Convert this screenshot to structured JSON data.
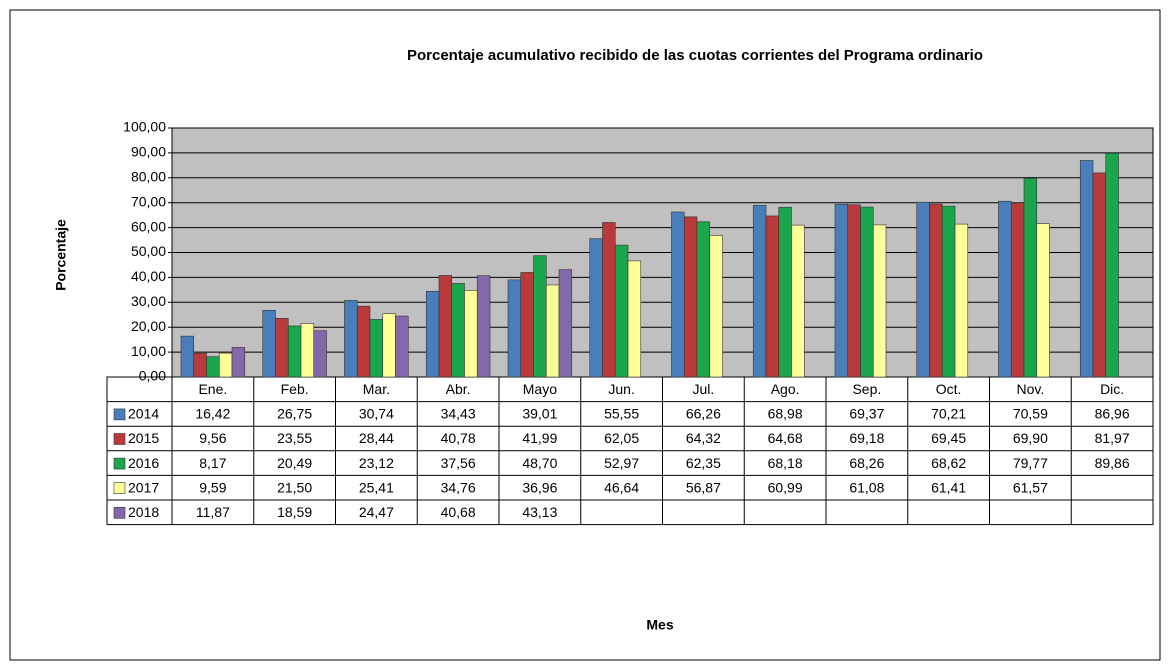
{
  "chart_data": {
    "type": "bar",
    "title": "Porcentaje acumulativo  recibido de las cuotas corrientes del Programa ordinario",
    "y_label": "Porcentaje",
    "x_label": "Mes",
    "categories": [
      "Ene.",
      "Feb.",
      "Mar.",
      "Abr.",
      "Mayo",
      "Jun.",
      "Jul.",
      "Ago.",
      "Sep.",
      "Oct.",
      "Nov.",
      "Dic."
    ],
    "series": [
      {
        "name": "2014",
        "color": "#4a7ebb",
        "values": [
          16.42,
          26.75,
          30.74,
          34.43,
          39.01,
          55.55,
          66.26,
          68.98,
          69.37,
          70.21,
          70.59,
          86.96
        ],
        "value_labels": [
          "16,42",
          "26,75",
          "30,74",
          "34,43",
          "39,01",
          "55,55",
          "66,26",
          "68,98",
          "69,37",
          "70,21",
          "70,59",
          "86,96"
        ]
      },
      {
        "name": "2015",
        "color": "#b83a3a",
        "values": [
          9.56,
          23.55,
          28.44,
          40.78,
          41.99,
          62.05,
          64.32,
          64.68,
          69.18,
          69.45,
          69.9,
          81.97
        ],
        "value_labels": [
          "9,56",
          "23,55",
          "28,44",
          "40,78",
          "41,99",
          "62,05",
          "64,32",
          "64,68",
          "69,18",
          "69,45",
          "69,90",
          "81,97"
        ]
      },
      {
        "name": "2016",
        "color": "#1aa64a",
        "values": [
          8.17,
          20.49,
          23.12,
          37.56,
          48.7,
          52.97,
          62.35,
          68.18,
          68.26,
          68.62,
          79.77,
          89.86
        ],
        "value_labels": [
          "8,17",
          "20,49",
          "23,12",
          "37,56",
          "48,70",
          "52,97",
          "62,35",
          "68,18",
          "68,26",
          "68,62",
          "79,77",
          "89,86"
        ]
      },
      {
        "name": "2017",
        "color": "#ffff99",
        "values": [
          9.59,
          21.5,
          25.41,
          34.76,
          36.96,
          46.64,
          56.87,
          60.99,
          61.08,
          61.41,
          61.57,
          null
        ],
        "value_labels": [
          "9,59",
          "21,50",
          "25,41",
          "34,76",
          "36,96",
          "46,64",
          "56,87",
          "60,99",
          "61,08",
          "61,41",
          "61,57",
          null
        ]
      },
      {
        "name": "2018",
        "color": "#8468ac",
        "values": [
          11.87,
          18.59,
          24.47,
          40.68,
          43.13,
          null,
          null,
          null,
          null,
          null,
          null,
          null
        ],
        "value_labels": [
          "11,87",
          "18,59",
          "24,47",
          "40,68",
          "43,13",
          null,
          null,
          null,
          null,
          null,
          null,
          null
        ]
      }
    ],
    "ylim": [
      0,
      100
    ],
    "yticks": [
      {
        "value": 0,
        "label": "0,00"
      },
      {
        "value": 10,
        "label": "10,00"
      },
      {
        "value": 20,
        "label": "20,00"
      },
      {
        "value": 30,
        "label": "30,00"
      },
      {
        "value": 40,
        "label": "40,00"
      },
      {
        "value": 50,
        "label": "50,00"
      },
      {
        "value": 60,
        "label": "60,00"
      },
      {
        "value": 70,
        "label": "70,00"
      },
      {
        "value": 80,
        "label": "80,00"
      },
      {
        "value": 90,
        "label": "90,00"
      },
      {
        "value": 100,
        "label": "100,00"
      }
    ],
    "grid": true
  }
}
